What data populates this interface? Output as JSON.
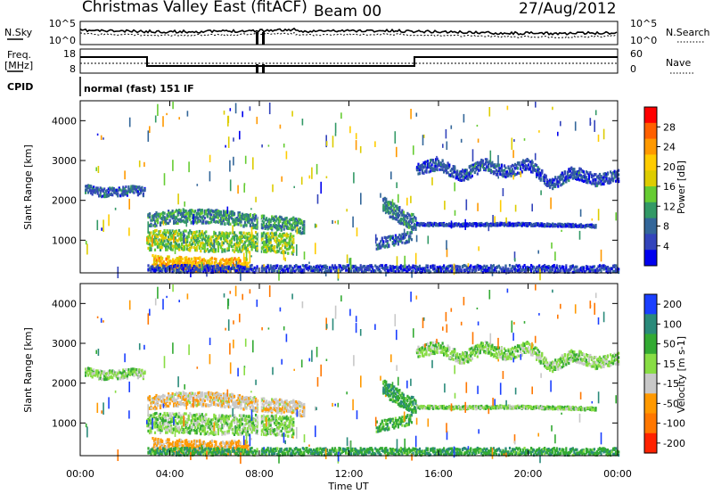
{
  "header": {
    "title": "Christmas Valley East (fitACF)",
    "beam": "Beam 00",
    "date": "27/Aug/2012"
  },
  "panels": {
    "noise": {
      "left_label": "N.Sky",
      "right_label": "N.Search",
      "left_ticks": [
        "10^5",
        "10^0"
      ],
      "right_ticks": [
        "10^5",
        "10^0"
      ]
    },
    "freq": {
      "left_label": "Freq.",
      "left_unit": "[MHz]",
      "right_label": "Nave",
      "left_ticks": [
        "18",
        "8"
      ],
      "right_ticks": [
        "60",
        "0"
      ]
    },
    "cpid": {
      "label": "CPID",
      "text": "normal (fast) 151 IF"
    }
  },
  "x_axis": {
    "label": "Time UT",
    "ticks": [
      "00:00",
      "04:00",
      "08:00",
      "12:00",
      "16:00",
      "20:00",
      "00:00"
    ]
  },
  "colorbars": {
    "power": {
      "label": "Power [dB]",
      "ticks": [
        "28",
        "24",
        "20",
        "16",
        "12",
        "8",
        "4"
      ],
      "colors": [
        "#ff0000",
        "#ff6000",
        "#ff9900",
        "#ffcc00",
        "#ddcc00",
        "#66cc33",
        "#339966",
        "#336699",
        "#3344bb",
        "#0000ee"
      ]
    },
    "velocity": {
      "label": "Velocity [m s-1]",
      "ticks": [
        "200",
        "100",
        "50",
        "15",
        "-15",
        "-50",
        "-100",
        "-200"
      ],
      "colors": [
        "#1a3fff",
        "#2a8a7a",
        "#33aa33",
        "#88dd44",
        "#c8c8c8",
        "#ff9900",
        "#ff7700",
        "#ff2200"
      ]
    }
  },
  "chart_data": [
    {
      "type": "heatmap",
      "title": "",
      "ylabel": "Slant Range [km]",
      "xlabel": "",
      "ylim": [
        180,
        4500
      ],
      "yticks": [
        1000,
        2000,
        3000,
        4000
      ],
      "x_hours": [
        0,
        24
      ],
      "colorbar_label": "Power [dB]",
      "colorbar_ticks": [
        4,
        8,
        12,
        16,
        20,
        24,
        28
      ],
      "features": [
        {
          "name": "band",
          "t": [
            0.2,
            0.8,
            1.6,
            2.4,
            2.9
          ],
          "r": [
            2300,
            2200,
            2200,
            2260,
            2200
          ],
          "spread": 110,
          "level": 8
        },
        {
          "name": "band",
          "t": [
            3.0,
            4.5,
            6.0,
            7.4,
            8.0,
            9.5,
            10.0
          ],
          "r": [
            1500,
            1600,
            1600,
            1500,
            1450,
            1400,
            1300
          ],
          "spread": 170,
          "level": 11
        },
        {
          "name": "band",
          "t": [
            3.0,
            4.5,
            6.0,
            7.5,
            8.5,
            9.5
          ],
          "r": [
            1000,
            1000,
            950,
            950,
            950,
            900
          ],
          "spread": 250,
          "level": 15
        },
        {
          "name": "band",
          "t": [
            3.2,
            4.5,
            6.0,
            7.5
          ],
          "r": [
            450,
            400,
            380,
            380
          ],
          "spread": 170,
          "level": 22
        },
        {
          "name": "band",
          "t": [
            3.0,
            5.0,
            7.5,
            10.0,
            13.0,
            15.0,
            18.0,
            21.0,
            24.0
          ],
          "r": [
            280,
            280,
            280,
            280,
            280,
            280,
            280,
            280,
            280
          ],
          "spread": 90,
          "level": 6
        },
        {
          "name": "band",
          "t": [
            13.5,
            14.0,
            14.6,
            15.0
          ],
          "r": [
            1900,
            1700,
            1500,
            1400
          ],
          "spread": 200,
          "level": 10
        },
        {
          "name": "band",
          "t": [
            13.2,
            14.0,
            14.8
          ],
          "r": [
            900,
            1000,
            1100
          ],
          "spread": 130,
          "level": 8
        },
        {
          "name": "band",
          "t": [
            15.0,
            16.0,
            17.0,
            18.0,
            19.0,
            20.0,
            21.0,
            22.0,
            23.0,
            24.0
          ],
          "r": [
            2800,
            2900,
            2600,
            2900,
            2700,
            2900,
            2400,
            2700,
            2500,
            2600
          ],
          "spread": 150,
          "level": 7
        },
        {
          "name": "band",
          "t": [
            15.0,
            17.0,
            19.0,
            21.0,
            23.0
          ],
          "r": [
            1400,
            1380,
            1400,
            1380,
            1350
          ],
          "spread": 35,
          "level": 6
        }
      ]
    },
    {
      "type": "heatmap",
      "title": "",
      "ylabel": "Slant Range [km]",
      "xlabel": "Time UT",
      "ylim": [
        180,
        4500
      ],
      "yticks": [
        1000,
        2000,
        3000,
        4000
      ],
      "x_hours": [
        0,
        24
      ],
      "colorbar_label": "Velocity [m s-1]",
      "colorbar_ticks": [
        -200,
        -100,
        -50,
        -15,
        15,
        50,
        100,
        200
      ],
      "features": [
        {
          "name": "band",
          "t": [
            0.2,
            0.8,
            1.6,
            2.4,
            2.9
          ],
          "r": [
            2300,
            2200,
            2200,
            2260,
            2200
          ],
          "spread": 110,
          "level": 0
        },
        {
          "name": "band",
          "t": [
            3.0,
            4.5,
            6.0,
            7.4,
            8.0,
            9.5,
            10.0
          ],
          "r": [
            1500,
            1600,
            1600,
            1500,
            1450,
            1400,
            1300
          ],
          "spread": 170,
          "level": -40
        },
        {
          "name": "band",
          "t": [
            3.0,
            4.5,
            6.0,
            7.5,
            8.5,
            9.5
          ],
          "r": [
            1000,
            1000,
            950,
            950,
            950,
            900
          ],
          "spread": 250,
          "level": 0
        },
        {
          "name": "band",
          "t": [
            3.2,
            4.5,
            6.0,
            7.5
          ],
          "r": [
            450,
            400,
            380,
            380
          ],
          "spread": 170,
          "level": -60
        },
        {
          "name": "band",
          "t": [
            3.0,
            5.0,
            7.5,
            10.0,
            13.0,
            15.0,
            18.0,
            21.0,
            24.0
          ],
          "r": [
            280,
            280,
            280,
            280,
            280,
            280,
            280,
            280,
            280
          ],
          "spread": 90,
          "level": 40
        },
        {
          "name": "band",
          "t": [
            13.5,
            14.0,
            14.6,
            15.0
          ],
          "r": [
            1900,
            1700,
            1500,
            1400
          ],
          "spread": 200,
          "level": 40
        },
        {
          "name": "band",
          "t": [
            13.2,
            14.0,
            14.8
          ],
          "r": [
            900,
            1000,
            1100
          ],
          "spread": 130,
          "level": 30
        },
        {
          "name": "band",
          "t": [
            15.0,
            16.0,
            17.0,
            18.0,
            19.0,
            20.0,
            21.0,
            22.0,
            23.0,
            24.0
          ],
          "r": [
            2800,
            2900,
            2600,
            2900,
            2700,
            2900,
            2400,
            2700,
            2500,
            2600
          ],
          "spread": 150,
          "level": 0
        },
        {
          "name": "band",
          "t": [
            15.0,
            17.0,
            19.0,
            21.0,
            23.0
          ],
          "r": [
            1400,
            1380,
            1400,
            1380,
            1350
          ],
          "spread": 35,
          "level": 0
        }
      ]
    }
  ]
}
